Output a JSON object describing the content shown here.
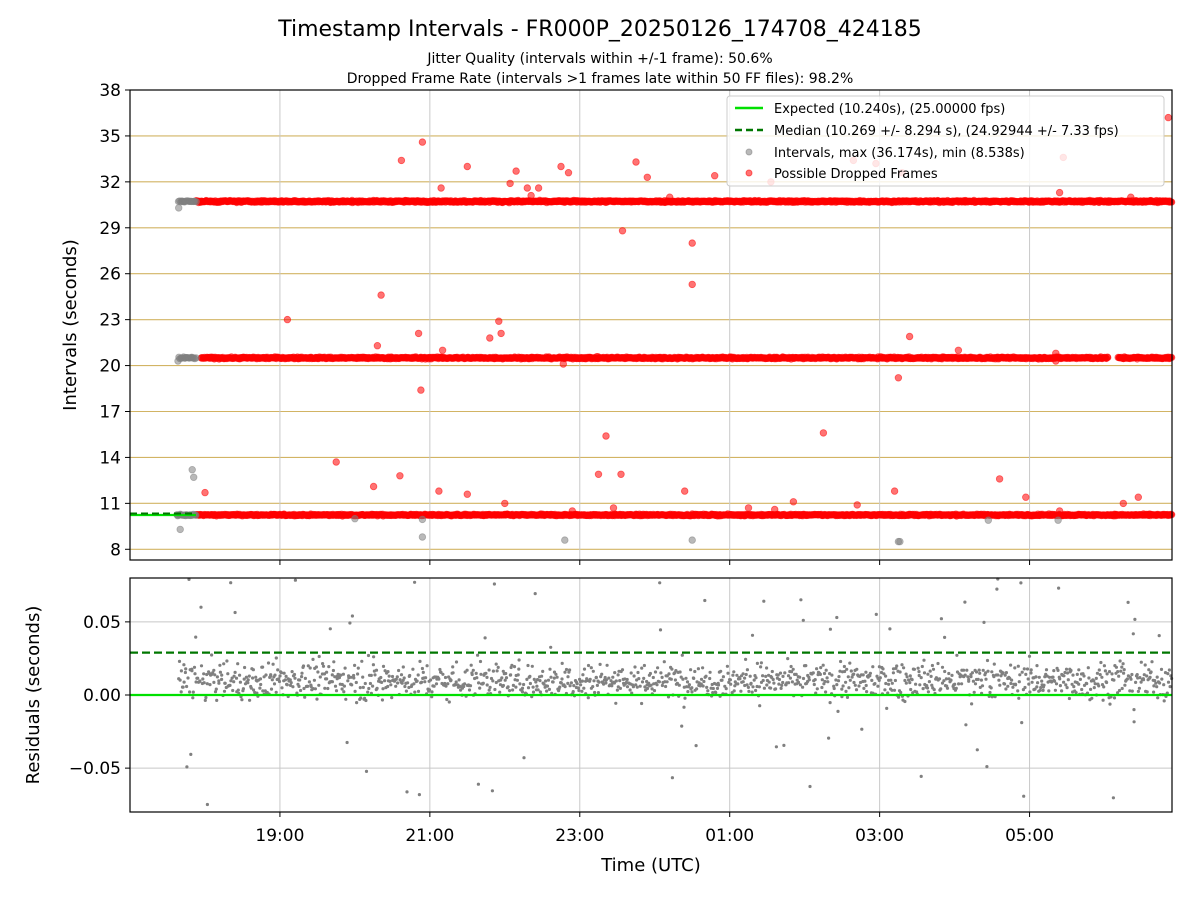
{
  "chart_data": [
    {
      "type": "scatter",
      "title": "Timestamp Intervals - FR000P_20250126_174708_424185",
      "subtitle_lines": [
        "Jitter Quality (intervals within +/-1 frame): 50.6%",
        "Dropped Frame Rate (intervals >1 frames late within 50 FF files): 98.2%"
      ],
      "ylabel": "Intervals (seconds)",
      "x_range_utc_hours": [
        17.0,
        30.9
      ],
      "ylim": [
        7.3,
        38.0
      ],
      "yticks": [
        "8",
        "11",
        "14",
        "17",
        "20",
        "23",
        "26",
        "29",
        "32",
        "35",
        "38"
      ],
      "ytick_values": [
        8,
        11,
        14,
        17,
        20,
        23,
        26,
        29,
        32,
        35,
        38
      ],
      "gridlines": "horizontal at y ticks (tan), vertical at x ticks (gray)",
      "legend_position": "top-right",
      "expected_value": 10.24,
      "median_value": 10.269,
      "legend": [
        {
          "name": "Expected (10.240s), (25.00000 fps)",
          "style": "solid-line",
          "color": "#00e000"
        },
        {
          "name": "Median (10.269 +/- 8.294 s), (24.92944 +/- 7.33 fps)",
          "style": "dashed-line",
          "color": "#007700"
        },
        {
          "name": "Intervals, max (36.174s), min (8.538s)",
          "style": "marker",
          "color": "#808080"
        },
        {
          "name": "Possible Dropped Frames",
          "style": "marker",
          "color": "#ff0000"
        }
      ],
      "bands": [
        {
          "series": "Possible Dropped Frames",
          "x_start": 17.88,
          "x_end": 30.9,
          "y": 10.24,
          "spread": 0.05
        },
        {
          "series": "Possible Dropped Frames",
          "x_start": 17.95,
          "x_end": 30.9,
          "y": 20.5,
          "spread": 0.06
        },
        {
          "series": "Possible Dropped Frames",
          "x_start": 17.88,
          "x_end": 30.9,
          "y": 30.72,
          "spread": 0.06
        },
        {
          "series": "Intervals",
          "x_start": 17.62,
          "x_end": 17.88,
          "y": 10.24,
          "spread": 0.05
        },
        {
          "series": "Intervals",
          "x_start": 17.65,
          "x_end": 17.88,
          "y": 20.5,
          "spread": 0.05
        },
        {
          "series": "Intervals",
          "x_start": 17.65,
          "x_end": 17.88,
          "y": 30.72,
          "spread": 0.05
        }
      ],
      "gray_outliers": [
        [
          17.67,
          9.3
        ],
        [
          17.65,
          30.3
        ],
        [
          17.64,
          20.3
        ],
        [
          17.83,
          13.2
        ],
        [
          17.85,
          12.7
        ],
        [
          20.9,
          8.8
        ],
        [
          22.8,
          8.6
        ],
        [
          24.5,
          8.6
        ],
        [
          27.25,
          8.5
        ],
        [
          27.27,
          8.5
        ],
        [
          28.45,
          9.9
        ],
        [
          29.38,
          9.9
        ],
        [
          20.0,
          10.0
        ],
        [
          20.9,
          9.95
        ]
      ],
      "red_outliers": [
        [
          18.0,
          11.7
        ],
        [
          19.1,
          23.0
        ],
        [
          19.75,
          13.7
        ],
        [
          20.25,
          12.1
        ],
        [
          20.3,
          21.3
        ],
        [
          20.35,
          24.6
        ],
        [
          20.6,
          12.8
        ],
        [
          20.62,
          33.4
        ],
        [
          20.85,
          22.1
        ],
        [
          20.88,
          18.4
        ],
        [
          20.9,
          34.6
        ],
        [
          21.12,
          11.8
        ],
        [
          21.17,
          21.0
        ],
        [
          21.15,
          31.6
        ],
        [
          21.5,
          11.6
        ],
        [
          21.5,
          33.0
        ],
        [
          21.8,
          21.8
        ],
        [
          21.92,
          22.9
        ],
        [
          21.95,
          22.1
        ],
        [
          22.0,
          11.0
        ],
        [
          22.07,
          31.9
        ],
        [
          22.15,
          32.7
        ],
        [
          22.3,
          31.6
        ],
        [
          22.35,
          31.1
        ],
        [
          22.45,
          31.6
        ],
        [
          22.75,
          33.0
        ],
        [
          22.78,
          20.1
        ],
        [
          22.85,
          32.6
        ],
        [
          22.9,
          10.5
        ],
        [
          23.25,
          12.9
        ],
        [
          23.35,
          15.4
        ],
        [
          23.45,
          10.7
        ],
        [
          23.55,
          12.9
        ],
        [
          23.57,
          28.8
        ],
        [
          23.75,
          33.3
        ],
        [
          23.9,
          32.3
        ],
        [
          24.2,
          31.0
        ],
        [
          24.4,
          11.8
        ],
        [
          24.5,
          28.0
        ],
        [
          24.5,
          25.3
        ],
        [
          24.8,
          32.4
        ],
        [
          25.25,
          10.7
        ],
        [
          25.6,
          10.6
        ],
        [
          25.55,
          32.0
        ],
        [
          25.85,
          11.1
        ],
        [
          26.25,
          15.6
        ],
        [
          26.65,
          33.4
        ],
        [
          26.7,
          10.9
        ],
        [
          26.95,
          33.2
        ],
        [
          27.2,
          11.8
        ],
        [
          27.25,
          19.2
        ],
        [
          27.3,
          32.6
        ],
        [
          27.4,
          21.9
        ],
        [
          28.05,
          21.0
        ],
        [
          28.6,
          12.6
        ],
        [
          28.95,
          11.4
        ],
        [
          29.35,
          20.8
        ],
        [
          29.4,
          31.3
        ],
        [
          29.45,
          33.6
        ],
        [
          29.4,
          10.5
        ],
        [
          29.35,
          20.3
        ],
        [
          30.25,
          11.0
        ],
        [
          30.45,
          11.4
        ],
        [
          30.35,
          31.0
        ],
        [
          30.85,
          36.2
        ]
      ]
    },
    {
      "type": "scatter",
      "xlabel": "Time (UTC)",
      "ylabel": "Residuals (seconds)",
      "x_range_utc_hours": [
        17.0,
        30.9
      ],
      "ylim": [
        -0.08,
        0.08
      ],
      "yticks": [
        "0.05",
        "0.00",
        "−0.05"
      ],
      "ytick_values": [
        0.05,
        0.0,
        -0.05
      ],
      "xticks": [
        "19:00",
        "21:00",
        "23:00",
        "01:00",
        "03:00",
        "05:00"
      ],
      "xtick_values": [
        19,
        21,
        23,
        25,
        27,
        29
      ],
      "expected_residual": 0.0,
      "median_residual": 0.029,
      "residual_points": {
        "color": "#808080",
        "x_start": 17.65,
        "x_end": 30.9,
        "center": 0.01,
        "typical_spread": 0.012,
        "count": 1400
      }
    }
  ]
}
